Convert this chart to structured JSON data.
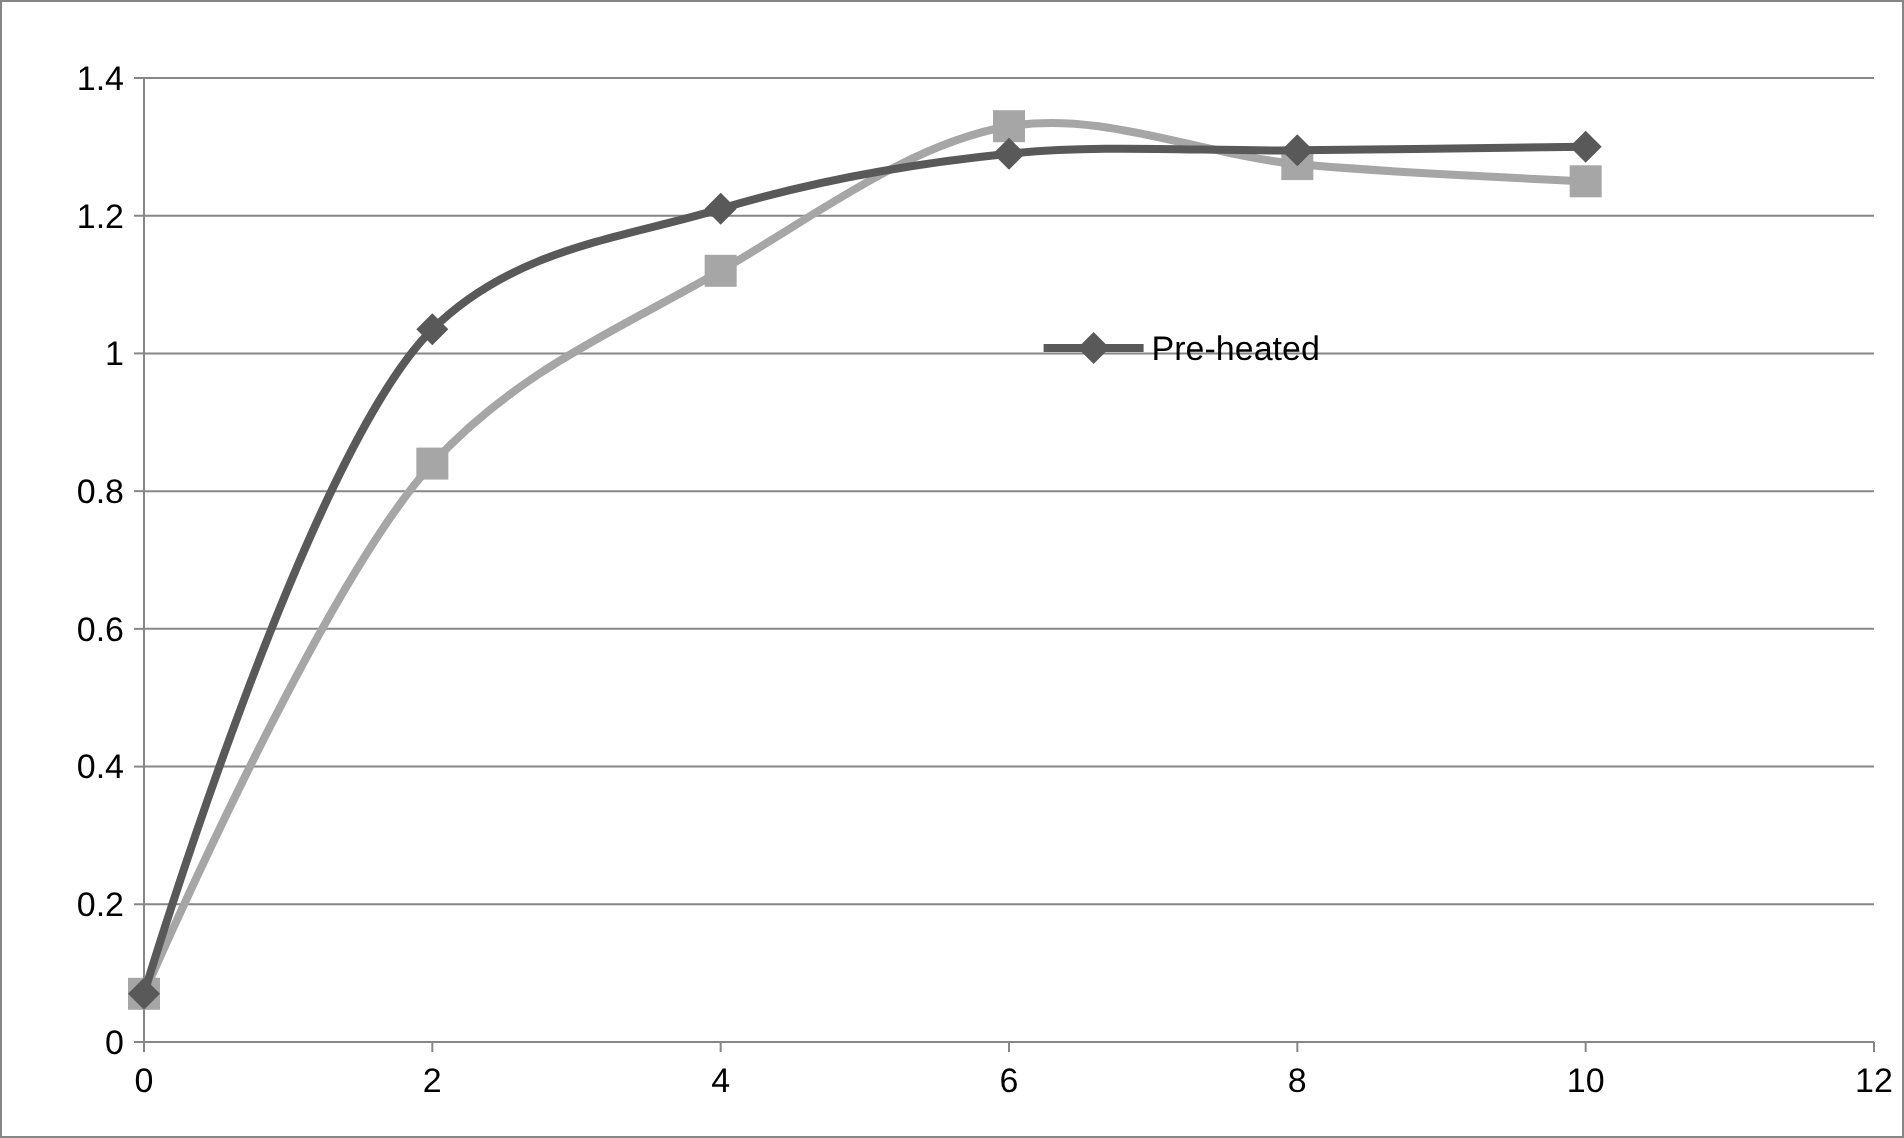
{
  "chart_data": {
    "type": "line",
    "x": [
      0,
      2,
      4,
      6,
      8,
      10
    ],
    "series": [
      {
        "name": "Pre-heated",
        "color": "#595959",
        "marker": "diamond",
        "values": [
          0.07,
          1.035,
          1.21,
          1.29,
          1.295,
          1.3
        ]
      },
      {
        "color": "#a6a6a6",
        "marker": "square",
        "values": [
          0.07,
          0.84,
          1.12,
          1.33,
          1.275,
          1.25
        ]
      }
    ],
    "xlim": [
      0,
      12
    ],
    "xticks": [
      0,
      2,
      4,
      6,
      8,
      10,
      12
    ],
    "ylim": [
      0,
      1.4
    ],
    "yticks": [
      0,
      0.2,
      0.4,
      0.6,
      0.8,
      1,
      1.2,
      1.4
    ],
    "grid": "y",
    "legend": "right",
    "line_style": "solid"
  }
}
